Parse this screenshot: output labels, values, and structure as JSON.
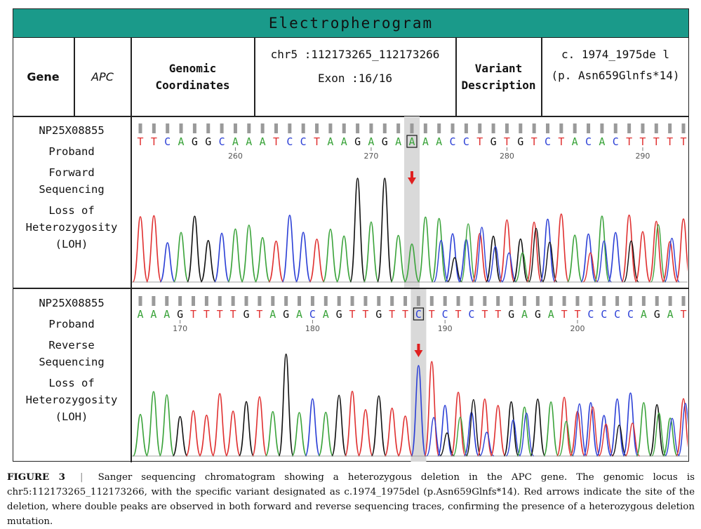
{
  "title": "Electropherogram",
  "header": {
    "gene_label": "Gene",
    "gene_value": "APC",
    "coord_label": [
      "Genomic",
      "Coordinates"
    ],
    "coord_value": "chr5 :112173265_112173266",
    "exon": "Exon :16/16",
    "variant_label": [
      "Variant",
      "Description"
    ],
    "variant_value": "c. 1974_1975de l",
    "protein_change": "(p. Asn659Glnfs*14)"
  },
  "panels": [
    {
      "sample": "NP25X08855",
      "label_lines": [
        "Proband",
        "Forward",
        "Sequencing",
        "Loss of",
        "Heterozygosity",
        "(LOH)"
      ],
      "sequence": "TTCAGGCAAATCCTAAGAGAAAACCTGTGTCTACACTTTTT",
      "boxed_index": 20,
      "ticks": [
        {
          "pos": 7,
          "label": "260"
        },
        {
          "pos": 17,
          "label": "270"
        },
        {
          "pos": 27,
          "label": "280"
        },
        {
          "pos": 37,
          "label": "290"
        }
      ]
    },
    {
      "sample": "NP25X08855",
      "label_lines": [
        "Proband",
        "Reverse",
        "Sequencing",
        "Loss of",
        "Heterozygosity",
        "(LOH)"
      ],
      "sequence": "AAAGTTTTGTAGACAGTTGTTCTCTCTTGAGATTCCCCAGAT",
      "boxed_index": 21,
      "ticks": [
        {
          "pos": 3,
          "label": "170"
        },
        {
          "pos": 13,
          "label": "180"
        },
        {
          "pos": 23,
          "label": "190"
        },
        {
          "pos": 33,
          "label": "200"
        }
      ]
    }
  ],
  "colors": {
    "A": "#3aa33a",
    "C": "#2b3fd6",
    "G": "#111111",
    "T": "#e03030",
    "header": "#1a9a8a",
    "arrow": "#e02020"
  },
  "caption": {
    "label": "FIGURE 3",
    "separator": "|",
    "text": "Sanger sequencing chromatogram showing a heterozygous deletion in the APC gene. The genomic locus is chr5:112173265_112173266, with the specific variant designated as c.1974_1975del (p.Asn659Glnfs*14). Red arrows indicate the site of the deletion, where double peaks are observed in both forward and reverse sequencing traces, confirming the presence of a heterozygous deletion mutation."
  }
}
